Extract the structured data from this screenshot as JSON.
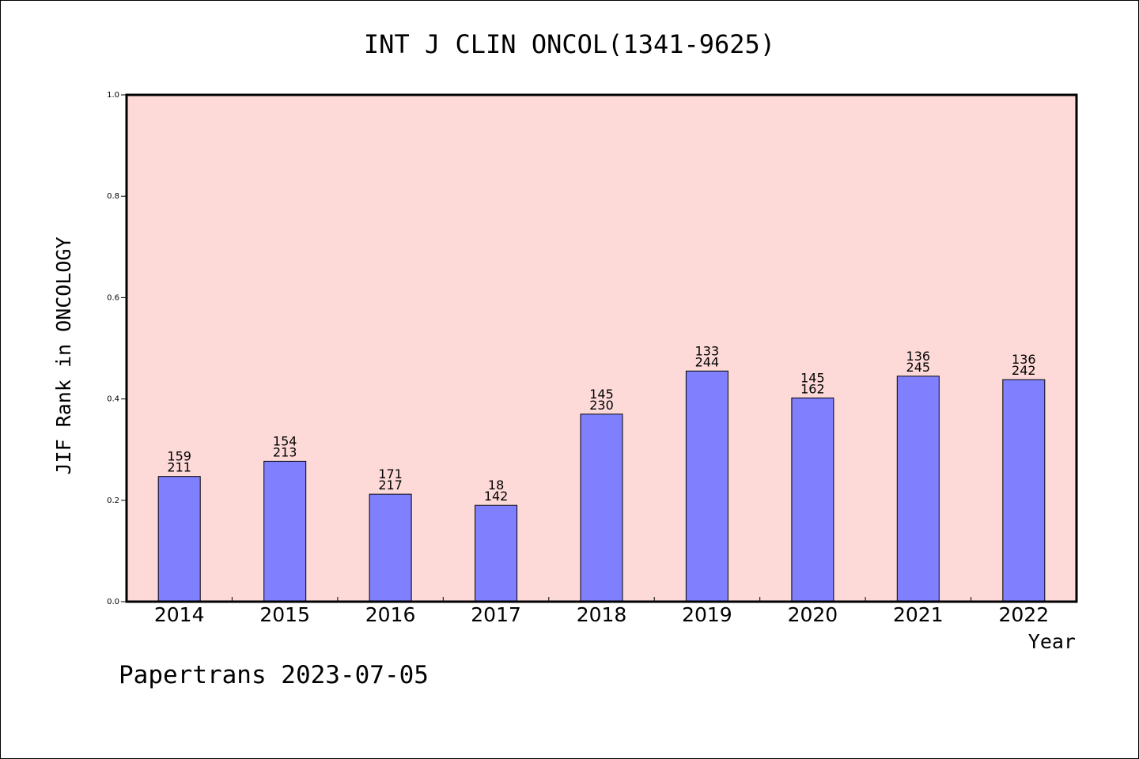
{
  "chart_data": {
    "type": "bar",
    "title": "INT J CLIN ONCOL(1341-9625)",
    "xlabel": "Year",
    "ylabel": "JIF Rank in ONCOLOGY",
    "ylim": [
      0,
      1.0
    ],
    "yticks": [
      "0.0",
      "0.2",
      "0.4",
      "0.6",
      "0.8",
      "1.0"
    ],
    "categories": [
      "2014",
      "2015",
      "2016",
      "2017",
      "2018",
      "2019",
      "2020",
      "2021",
      "2022"
    ],
    "values": [
      0.247,
      0.277,
      0.212,
      0.19,
      0.37,
      0.455,
      0.402,
      0.445,
      0.438
    ],
    "rank_labels": [
      "159",
      "154",
      "171",
      "18",
      "145",
      "133",
      "145",
      "136",
      "136"
    ],
    "total_labels": [
      "211",
      "213",
      "217",
      "142",
      "230",
      "244",
      "162",
      "245",
      "242"
    ],
    "grid": false,
    "colors": {
      "plot_background": "#fddad8",
      "bar_fill": "#8080ff",
      "bar_stroke": "#000000"
    }
  },
  "footer": {
    "text": "Papertrans 2023-07-05"
  }
}
